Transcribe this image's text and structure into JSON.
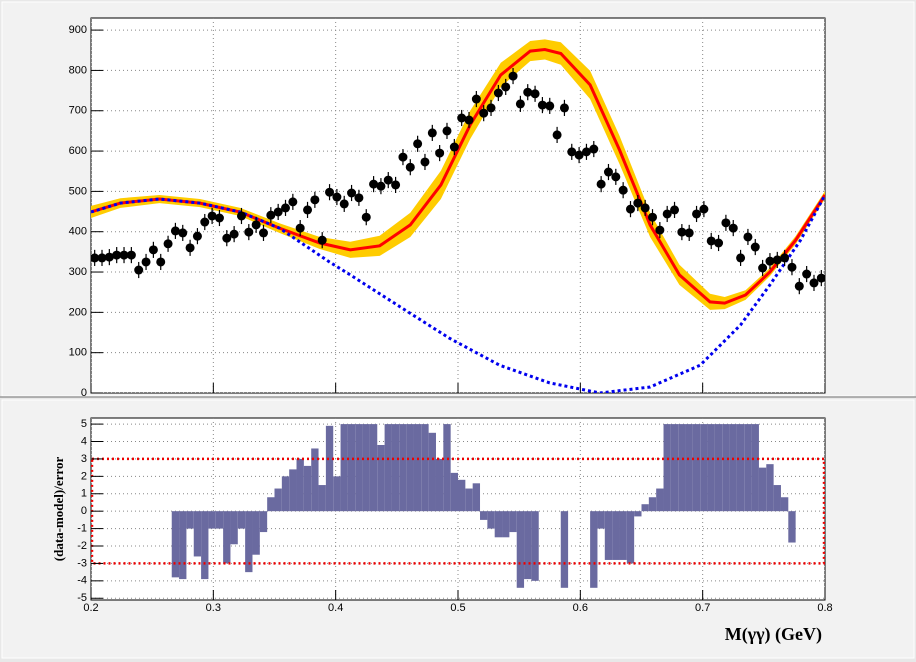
{
  "chart_data": [
    {
      "type": "scatter",
      "xlim": [
        0.2,
        0.8
      ],
      "xticks": [
        0.2,
        0.3,
        0.4,
        0.5,
        0.6,
        0.7,
        0.8
      ],
      "ylim": [
        0,
        930
      ],
      "yticks": [
        0,
        100,
        200,
        300,
        400,
        500,
        600,
        700,
        800,
        900
      ],
      "grid": true,
      "series": [
        {
          "style": "band_line",
          "color": "#ff0000",
          "band_color": "#ffcc00",
          "x": [
            0.2,
            0.224,
            0.256,
            0.289,
            0.322,
            0.354,
            0.387,
            0.412,
            0.436,
            0.461,
            0.486,
            0.51,
            0.535,
            0.559,
            0.571,
            0.584,
            0.608,
            0.632,
            0.657,
            0.681,
            0.706,
            0.718,
            0.735,
            0.755,
            0.776,
            0.8
          ],
          "values": [
            449,
            471,
            481,
            471,
            449,
            409,
            372,
            355,
            365,
            417,
            516,
            665,
            789,
            848,
            852,
            842,
            764,
            603,
            417,
            293,
            226,
            223,
            243,
            300,
            379,
            491
          ],
          "errors": [
            15,
            12,
            10,
            10,
            10,
            12,
            15,
            20,
            25,
            30,
            35,
            35,
            30,
            25,
            25,
            28,
            35,
            35,
            30,
            25,
            20,
            15,
            12,
            10,
            10,
            10
          ]
        },
        {
          "style": "dashed",
          "color": "#0000ee",
          "x": [
            0.2,
            0.224,
            0.256,
            0.289,
            0.322,
            0.354,
            0.395,
            0.412,
            0.453,
            0.493,
            0.534,
            0.575,
            0.616,
            0.657,
            0.698,
            0.731,
            0.755,
            0.78,
            0.8
          ],
          "values": [
            449,
            471,
            481,
            471,
            449,
            409,
            325,
            293,
            213,
            136,
            69,
            25,
            0,
            15,
            69,
            169,
            268,
            379,
            491
          ]
        },
        {
          "style": "points",
          "color": "#000000",
          "x": [
            0.203,
            0.209,
            0.215,
            0.221,
            0.227,
            0.233,
            0.239,
            0.245,
            0.251,
            0.257,
            0.263,
            0.269,
            0.275,
            0.281,
            0.287,
            0.293,
            0.299,
            0.305,
            0.311,
            0.317,
            0.323,
            0.329,
            0.335,
            0.341,
            0.347,
            0.353,
            0.359,
            0.365,
            0.371,
            0.377,
            0.383,
            0.389,
            0.395,
            0.401,
            0.407,
            0.413,
            0.419,
            0.425,
            0.431,
            0.437,
            0.443,
            0.449,
            0.455,
            0.461,
            0.467,
            0.473,
            0.479,
            0.485,
            0.491,
            0.497,
            0.503,
            0.509,
            0.515,
            0.521,
            0.527,
            0.533,
            0.539,
            0.545,
            0.551,
            0.557,
            0.563,
            0.569,
            0.575,
            0.581,
            0.587,
            0.593,
            0.599,
            0.605,
            0.611,
            0.617,
            0.623,
            0.629,
            0.635,
            0.641,
            0.647,
            0.653,
            0.659,
            0.665,
            0.671,
            0.677,
            0.683,
            0.689,
            0.695,
            0.701,
            0.707,
            0.713,
            0.719,
            0.725,
            0.731,
            0.737,
            0.743,
            0.749,
            0.755,
            0.761,
            0.767,
            0.773,
            0.779,
            0.785,
            0.791,
            0.797
          ],
          "values": [
            335,
            335,
            337,
            342,
            342,
            342,
            305,
            325,
            355,
            325,
            370,
            402,
            397,
            360,
            389,
            424,
            439,
            434,
            384,
            394,
            439,
            399,
            417,
            397,
            441,
            449,
            459,
            474,
            409,
            454,
            479,
            379,
            498,
            486,
            469,
            496,
            484,
            436,
            518,
            513,
            528,
            516,
            585,
            560,
            618,
            573,
            645,
            595,
            650,
            610,
            682,
            677,
            729,
            694,
            707,
            744,
            759,
            786,
            717,
            746,
            742,
            714,
            712,
            640,
            707,
            598,
            590,
            598,
            605,
            518,
            548,
            536,
            503,
            456,
            471,
            459,
            436,
            404,
            444,
            454,
            399,
            397,
            444,
            456,
            377,
            372,
            422,
            409,
            335,
            387,
            362,
            310,
            327,
            330,
            335,
            312,
            265,
            295,
            273,
            285
          ],
          "errors": [
            20,
            20,
            20,
            20,
            20,
            20,
            20,
            20,
            20,
            20,
            20,
            20,
            20,
            20,
            20,
            20,
            20,
            20,
            20,
            20,
            20,
            20,
            20,
            20,
            20,
            20,
            20,
            20,
            20,
            20,
            20,
            20,
            20,
            20,
            20,
            20,
            20,
            20,
            20,
            20,
            20,
            20,
            20,
            20,
            20,
            20,
            20,
            20,
            20,
            20,
            20,
            20,
            20,
            20,
            20,
            20,
            20,
            20,
            20,
            20,
            20,
            20,
            20,
            20,
            20,
            20,
            20,
            20,
            20,
            20,
            20,
            20,
            20,
            20,
            20,
            20,
            20,
            20,
            20,
            20,
            20,
            20,
            20,
            20,
            20,
            20,
            20,
            20,
            20,
            20,
            20,
            20,
            20,
            20,
            20,
            20,
            20,
            20,
            20,
            20
          ]
        }
      ]
    },
    {
      "type": "histogram",
      "x_label": "M(γγ) (GeV)",
      "y_label": "(data-model)/error",
      "xlim": [
        0.2,
        0.8
      ],
      "xticks": [
        0.2,
        0.3,
        0.4,
        0.5,
        0.6,
        0.7,
        0.8
      ],
      "ylim": [
        -5.1,
        5.35
      ],
      "yticks": [
        -5,
        -4,
        -3,
        -2,
        -1,
        0,
        1,
        2,
        3,
        4,
        5
      ],
      "grid": true,
      "color": "#6a6aa0",
      "limit_lines": [
        -3,
        3
      ],
      "limit_color": "#ee0000",
      "bins": [
        0.2,
        0.206,
        0.212,
        0.218,
        0.224,
        0.23,
        0.236,
        0.242,
        0.248,
        0.254,
        0.26,
        0.266,
        0.272,
        0.278,
        0.284,
        0.29,
        0.296,
        0.302,
        0.308,
        0.314,
        0.32,
        0.326,
        0.332,
        0.338,
        0.344,
        0.35,
        0.356,
        0.362,
        0.368,
        0.374,
        0.38,
        0.386,
        0.392,
        0.398,
        0.404,
        0.41,
        0.416,
        0.422,
        0.428,
        0.434,
        0.44,
        0.446,
        0.452,
        0.458,
        0.464,
        0.47,
        0.476,
        0.482,
        0.488,
        0.494,
        0.5,
        0.506,
        0.512,
        0.518,
        0.524,
        0.53,
        0.536,
        0.542,
        0.548,
        0.554,
        0.56,
        0.566,
        0.572,
        0.578,
        0.584,
        0.59,
        0.596,
        0.602,
        0.608,
        0.614,
        0.62,
        0.626,
        0.632,
        0.638,
        0.644,
        0.65,
        0.656,
        0.662,
        0.668,
        0.674,
        0.68,
        0.686,
        0.692,
        0.698,
        0.704,
        0.71,
        0.716,
        0.722,
        0.728,
        0.734,
        0.74,
        0.746,
        0.752,
        0.758,
        0.764,
        0.77,
        0.776,
        0.782,
        0.788,
        0.794,
        0.8
      ],
      "values": [
        0,
        0,
        0,
        0,
        0,
        0,
        0,
        0,
        0,
        0,
        0,
        -3.8,
        -3.9,
        -1.0,
        -2.6,
        -3.9,
        -1.0,
        -1.0,
        -3.0,
        -1.9,
        -1.0,
        -3.5,
        -2.5,
        -1.2,
        0.8,
        1.3,
        2.0,
        2.4,
        3.0,
        2.6,
        3.6,
        1.5,
        4.9,
        2.0,
        5,
        5,
        5,
        5,
        5,
        3.8,
        5,
        5,
        5,
        5,
        5,
        5,
        4.5,
        3.0,
        5,
        2.2,
        1.8,
        1.3,
        1.6,
        -0.5,
        -1.0,
        -1.5,
        -1.5,
        -1.2,
        -4.4,
        -3.9,
        -4.0,
        0,
        0,
        0,
        -4.4,
        0,
        0,
        0,
        -4.4,
        -1.0,
        -2.8,
        -2.8,
        -2.8,
        -3.0,
        -0.3,
        0.4,
        0.8,
        1.3,
        5,
        5,
        5,
        5,
        5,
        5,
        5,
        5,
        5,
        5,
        5,
        5,
        5,
        2.5,
        2.7,
        1.5,
        0.8,
        -1.8,
        0,
        0,
        0,
        0
      ]
    }
  ]
}
